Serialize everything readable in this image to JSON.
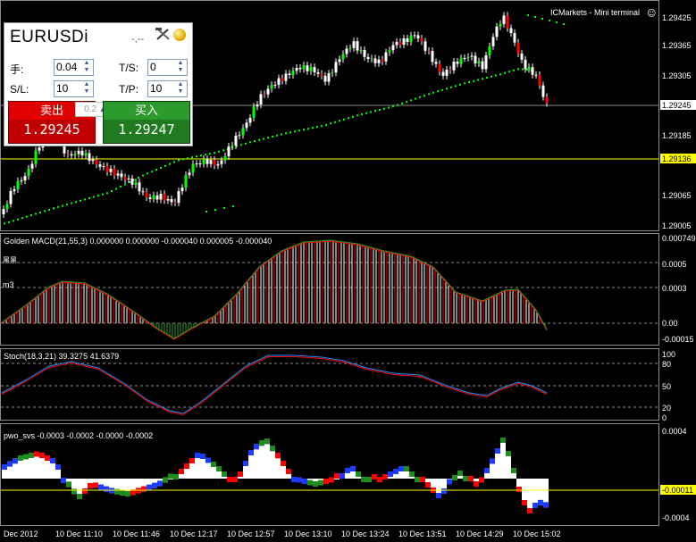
{
  "terminal": {
    "broker_title": "ICMarkets - Mini terminal",
    "title_glyph": "☺"
  },
  "widget": {
    "symbol": "EURUSDi",
    "spread": "-,--",
    "lot_label": "手:",
    "lot_value": "0.04",
    "ts_label": "T/S:",
    "ts_value": "0",
    "sl_label": "S/L:",
    "sl_value": "10",
    "tp_label": "T/P:",
    "tp_value": "10",
    "sell_label": "卖出",
    "buy_label": "买入",
    "sell_price": "1.29245",
    "buy_price": "1.29247",
    "step_value": "0.2",
    "sell_color": "#c00000",
    "buy_color": "#207a20"
  },
  "price_axis": {
    "labels": [
      "1.29425",
      "1.29365",
      "1.29305",
      "1.29245",
      "1.29185",
      "1.29136",
      "1.29065",
      "1.29005"
    ],
    "current_price": "1.29245",
    "marked_price": "1.29136",
    "marked_color": "#ffff00"
  },
  "panels": {
    "macd": {
      "title": "Golden MACD(21,55,3) 0.000000 0.000000 -0.000040 0.000005 -0.000040",
      "axis": [
        "0.000749",
        "0.0005",
        "0.0003",
        "0.00",
        "-0.00015"
      ],
      "side_label_1": "黑黑",
      "side_label_2": "m3"
    },
    "stoch": {
      "title": "Stoch(18,3,21) 39.3275 41.6379",
      "axis": [
        "100",
        "80",
        "50",
        "20",
        "0"
      ]
    },
    "pwo": {
      "title": "pwo_svs -0.0003 -0.0002 -0.0000 -0.0002",
      "axis": [
        "0.0004",
        "-0.00011",
        "-0.0004"
      ],
      "marked_color": "#ffff00"
    }
  },
  "time_axis": [
    "Dec 2012",
    "10 Dec 11:10",
    "10 Dec 11:46",
    "10 Dec 12:17",
    "10 Dec 12:57",
    "10 Dec 13:10",
    "10 Dec 13:24",
    "10 Dec 13:51",
    "10 Dec 14:29",
    "10 Dec 15:02"
  ],
  "colors": {
    "bull_candle": "#00ff00",
    "bear_candle": "#ff0000",
    "ma_dots": "#00ff00",
    "macd_bar": "#ffffff",
    "macd_signal": "#ff0000",
    "stoch_main": "#1e90ff",
    "stoch_signal": "#ff0000"
  }
}
